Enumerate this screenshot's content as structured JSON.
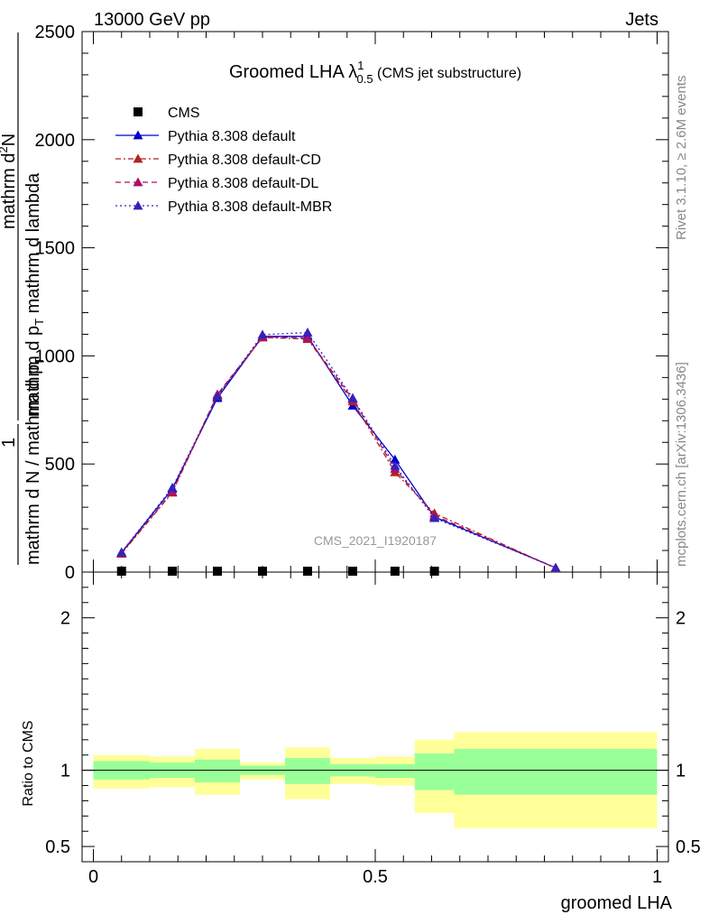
{
  "header": {
    "left": "13000 GeV pp",
    "right": "Jets"
  },
  "side_text": {
    "rivet": "Rivet 3.1.10, ≥ 2.6M events",
    "mcplots": "mcplots.cern.ch [arXiv:1306.3436]"
  },
  "chart_data": [
    {
      "type": "line",
      "title": {
        "prefix": "Groomed LHA ",
        "symbol": "λ",
        "sup": "1",
        "sub": "0.5",
        "suffix": " (CMS jet substructure)"
      },
      "watermark": "CMS_2021_I1920187",
      "ylabel": {
        "frac_num": "1",
        "frac_den": "mathrm d N / mathrm d p",
        "frac_den_sub": "T",
        "main_num": "mathrm d",
        "main_num_sup": "2",
        "main_num_tail": "N",
        "main_den": "mathrm d p",
        "main_den_sub": "T",
        "main_den_tail": " mathrm d lambda"
      },
      "xlim": [
        -0.02,
        1.02
      ],
      "ylim": [
        0,
        2500
      ],
      "y_ticks": [
        {
          "v": 0,
          "label": "0"
        },
        {
          "v": 500,
          "label": "500"
        },
        {
          "v": 1000,
          "label": "1000"
        },
        {
          "v": 1500,
          "label": "1500"
        },
        {
          "v": 2000,
          "label": "2000"
        },
        {
          "v": 2500,
          "label": "2500"
        }
      ],
      "legend_position": "top-left",
      "data": {
        "name": "CMS",
        "x": [
          0.05,
          0.14,
          0.22,
          0.3,
          0.38,
          0.46,
          0.535,
          0.605
        ],
        "y": [
          0,
          0,
          0,
          0,
          0,
          0,
          0,
          0
        ]
      },
      "series": [
        {
          "name": "Pythia 8.308 default",
          "color": "#0000cc",
          "dash": "solid",
          "x": [
            0.05,
            0.14,
            0.22,
            0.3,
            0.38,
            0.46,
            0.535,
            0.605,
            0.82
          ],
          "y": [
            90,
            385,
            805,
            1090,
            1090,
            770,
            520,
            255,
            20
          ]
        },
        {
          "name": "Pythia 8.308 default-CD",
          "color": "#b22222",
          "dash": "dashdot",
          "x": [
            0.05,
            0.14,
            0.22,
            0.3,
            0.38,
            0.46,
            0.535,
            0.605,
            0.82
          ],
          "y": [
            85,
            368,
            818,
            1085,
            1078,
            790,
            462,
            272,
            18
          ]
        },
        {
          "name": "Pythia 8.308 default-DL",
          "color": "#aa1166",
          "dash": "dashed",
          "x": [
            0.05,
            0.14,
            0.22,
            0.3,
            0.38,
            0.46,
            0.535,
            0.605,
            0.82
          ],
          "y": [
            88,
            372,
            822,
            1088,
            1082,
            800,
            478,
            262,
            20
          ]
        },
        {
          "name": "Pythia 8.308 default-MBR",
          "color": "#3322bb",
          "dash": "dotted",
          "x": [
            0.05,
            0.14,
            0.22,
            0.3,
            0.38,
            0.46,
            0.535,
            0.605,
            0.82
          ],
          "y": [
            92,
            390,
            812,
            1098,
            1108,
            805,
            492,
            250,
            20
          ]
        }
      ]
    },
    {
      "type": "area",
      "ylabel": "Ratio to CMS",
      "xlabel": "groomed LHA",
      "xlim": [
        -0.02,
        1.02
      ],
      "ylim": [
        0.4,
        2.3
      ],
      "x_ticks": [
        {
          "v": 0,
          "label": "0"
        },
        {
          "v": 0.5,
          "label": "0.5"
        },
        {
          "v": 1,
          "label": "1"
        }
      ],
      "y_ticks": [
        {
          "v": 0.5,
          "label": "0.5"
        },
        {
          "v": 1,
          "label": "1"
        },
        {
          "v": 2,
          "label": "2"
        }
      ],
      "bands": {
        "inner_color": "#99ff99",
        "outer_color": "#ffff99",
        "bins": [
          {
            "x0": 0.0,
            "x1": 0.1,
            "in_lo": 0.94,
            "in_hi": 1.06,
            "out_lo": 0.88,
            "out_hi": 1.1
          },
          {
            "x0": 0.1,
            "x1": 0.18,
            "in_lo": 0.95,
            "in_hi": 1.05,
            "out_lo": 0.89,
            "out_hi": 1.09
          },
          {
            "x0": 0.18,
            "x1": 0.26,
            "in_lo": 0.92,
            "in_hi": 1.07,
            "out_lo": 0.84,
            "out_hi": 1.14
          },
          {
            "x0": 0.26,
            "x1": 0.34,
            "in_lo": 0.97,
            "in_hi": 1.03,
            "out_lo": 0.94,
            "out_hi": 1.05
          },
          {
            "x0": 0.34,
            "x1": 0.42,
            "in_lo": 0.91,
            "in_hi": 1.08,
            "out_lo": 0.81,
            "out_hi": 1.15
          },
          {
            "x0": 0.42,
            "x1": 0.5,
            "in_lo": 0.96,
            "in_hi": 1.04,
            "out_lo": 0.91,
            "out_hi": 1.08
          },
          {
            "x0": 0.5,
            "x1": 0.57,
            "in_lo": 0.95,
            "in_hi": 1.04,
            "out_lo": 0.9,
            "out_hi": 1.09
          },
          {
            "x0": 0.57,
            "x1": 0.64,
            "in_lo": 0.87,
            "in_hi": 1.11,
            "out_lo": 0.72,
            "out_hi": 1.2
          },
          {
            "x0": 0.64,
            "x1": 1.0,
            "in_lo": 0.84,
            "in_hi": 1.14,
            "out_lo": 0.62,
            "out_hi": 1.25
          }
        ]
      },
      "reference_line": 1.0
    }
  ]
}
